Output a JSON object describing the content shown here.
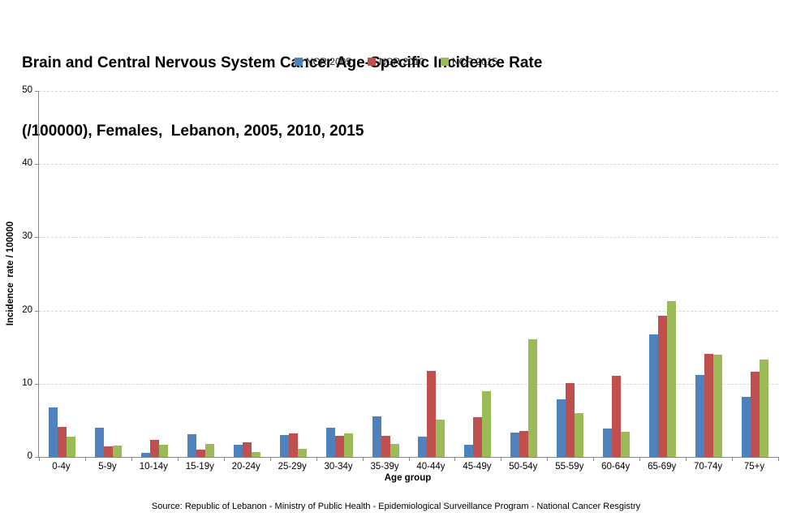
{
  "title": {
    "line1": "Brain and Central Nervous System Cancer Age-Specific Incidence Rate",
    "line2": "(/100000), Females,  Lebanon, 2005, 2010, 2015"
  },
  "axes": {
    "y_title": "Incidence  rate / 100000",
    "x_title": "Age group",
    "y_ticks": [
      0,
      10,
      20,
      30,
      40,
      50
    ]
  },
  "source": {
    "text": "Source: Republic of Lebanon - Ministry of Public Health - Epidemiological Surveillance Program - National Cancer Resgistry"
  },
  "chart_data": {
    "type": "bar",
    "title": "Brain and Central Nervous System Cancer Age-Specific Incidence Rate (/100000), Females, Lebanon, 2005, 2010, 2015",
    "xlabel": "Age group",
    "ylabel": "Incidence rate / 100000",
    "ylim": [
      0,
      50
    ],
    "grid": true,
    "legend_position": "top-center",
    "categories": [
      "0-4y",
      "5-9y",
      "10-14y",
      "15-19y",
      "20-24y",
      "25-29y",
      "30-34y",
      "35-39y",
      "40-44y",
      "45-49y",
      "50-54y",
      "55-59y",
      "60-64y",
      "65-69y",
      "70-74y",
      "75+y"
    ],
    "series": [
      {
        "name": "NCR 2005",
        "color": "#4F81BD",
        "values": [
          6.8,
          4.0,
          0.6,
          3.1,
          1.7,
          3.0,
          4.0,
          5.5,
          2.8,
          1.7,
          3.3,
          7.9,
          3.9,
          16.7,
          11.2,
          8.2
        ]
      },
      {
        "name": "NCR 2010",
        "color": "#C0504D",
        "values": [
          4.1,
          1.4,
          2.3,
          1.0,
          2.0,
          3.2,
          2.9,
          2.9,
          11.8,
          5.4,
          3.5,
          10.1,
          11.1,
          19.3,
          14.1,
          11.6
        ]
      },
      {
        "name": "NCR 2015",
        "color": "#9BBB59",
        "values": [
          2.8,
          1.6,
          1.7,
          1.8,
          0.7,
          1.1,
          3.2,
          1.8,
          5.1,
          9.0,
          16.1,
          6.0,
          3.4,
          21.3,
          14.0,
          13.3
        ]
      }
    ]
  }
}
